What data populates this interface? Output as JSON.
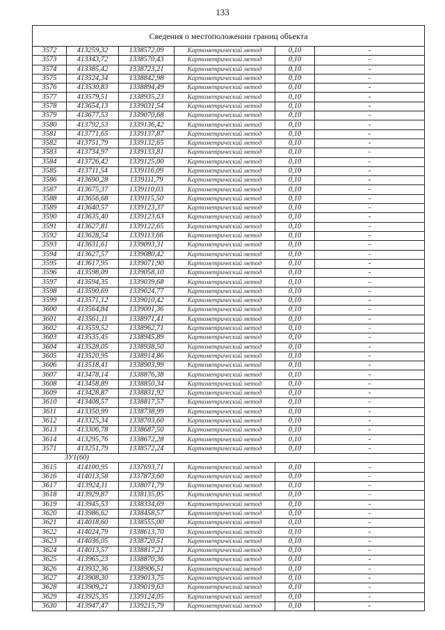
{
  "page_number": "133",
  "table": {
    "title": "Сведения о местоположении границ объекта",
    "sections": [
      {
        "label": "",
        "rows": [
          [
            "3572",
            "413259,32",
            "1338572,09",
            "Картометрический метод",
            "0,10",
            "-"
          ],
          [
            "3573",
            "413343,72",
            "1338570,43",
            "Картометрический метод",
            "0,10",
            "-"
          ],
          [
            "3574",
            "413385,42",
            "1338723,21",
            "Картометрический метод",
            "0,10",
            "-"
          ],
          [
            "3575",
            "413524,34",
            "1338842,98",
            "Картометрический метод",
            "0,10",
            "-"
          ],
          [
            "3576",
            "413530,83",
            "1338894,49",
            "Картометрический метод",
            "0,10",
            "-"
          ],
          [
            "3577",
            "413579,51",
            "1338935,23",
            "Картометрический метод",
            "0,10",
            "-"
          ],
          [
            "3578",
            "413654,13",
            "1339031,54",
            "Картометрический метод",
            "0,10",
            "-"
          ],
          [
            "3579",
            "413677,53",
            "1339070,68",
            "Картометрический метод",
            "0,10",
            "-"
          ],
          [
            "3580",
            "413792,53",
            "1339136,42",
            "Картометрический метод",
            "0,10",
            "-"
          ],
          [
            "3581",
            "413771,65",
            "1339137,87",
            "Картометрический метод",
            "0,10",
            "-"
          ],
          [
            "3582",
            "413751,79",
            "1339132,65",
            "Картометрический метод",
            "0,10",
            "-"
          ],
          [
            "3583",
            "413734,97",
            "1339133,81",
            "Картометрический метод",
            "0,10",
            "-"
          ],
          [
            "3584",
            "413726,42",
            "1339125,00",
            "Картометрический метод",
            "0,10",
            "-"
          ],
          [
            "3585",
            "413711,54",
            "1339116,09",
            "Картометрический метод",
            "0,10",
            "-"
          ],
          [
            "3586",
            "413690,28",
            "1339111,79",
            "Картометрический метод",
            "0,10",
            "-"
          ],
          [
            "3587",
            "413675,37",
            "1339110,03",
            "Картометрический метод",
            "0,10",
            "-"
          ],
          [
            "3588",
            "413656,68",
            "1339115,50",
            "Картометрический метод",
            "0,10",
            "-"
          ],
          [
            "3589",
            "413640,57",
            "1339123,37",
            "Картометрический метод",
            "0,10",
            "-"
          ],
          [
            "3590",
            "413635,40",
            "1339123,63",
            "Картометрический метод",
            "0,10",
            "-"
          ],
          [
            "3591",
            "413627,81",
            "1339122,65",
            "Картометрический метод",
            "0,10",
            "-"
          ],
          [
            "3592",
            "413628,54",
            "1339113,66",
            "Картометрический метод",
            "0,10",
            "-"
          ],
          [
            "3593",
            "413631,61",
            "1339093,31",
            "Картометрический метод",
            "0,10",
            "-"
          ],
          [
            "3594",
            "413627,57",
            "1339080,42",
            "Картометрический метод",
            "0,10",
            "-"
          ],
          [
            "3595",
            "413617,95",
            "1339071,90",
            "Картометрический метод",
            "0,10",
            "-"
          ],
          [
            "3596",
            "413598,09",
            "1339058,10",
            "Картометрический метод",
            "0,10",
            "-"
          ],
          [
            "3597",
            "413594,35",
            "1339039,68",
            "Картометрический метод",
            "0,10",
            "-"
          ],
          [
            "3598",
            "413590,69",
            "1339024,77",
            "Картометрический метод",
            "0,10",
            "-"
          ],
          [
            "3599",
            "413571,12",
            "1339010,42",
            "Картометрический метод",
            "0,10",
            "-"
          ],
          [
            "3600",
            "413564,84",
            "1339001,36",
            "Картометрический метод",
            "0,10",
            "-"
          ],
          [
            "3601",
            "413561,11",
            "1338971,41",
            "Картометрический метод",
            "0,10",
            "-"
          ],
          [
            "3602",
            "413559,52",
            "1338962,71",
            "Картометрический метод",
            "0,10",
            "-"
          ],
          [
            "3603",
            "413535,45",
            "1338945,89",
            "Картометрический метод",
            "0,10",
            "-"
          ],
          [
            "3604",
            "413528,05",
            "1338938,50",
            "Картометрический метод",
            "0,10",
            "-"
          ],
          [
            "3605",
            "413520,95",
            "1338914,86",
            "Картометрический метод",
            "0,10",
            "-"
          ],
          [
            "3606",
            "413518,41",
            "1338903,99",
            "Картометрический метод",
            "0,10",
            "-"
          ],
          [
            "3607",
            "413478,14",
            "1338876,38",
            "Картометрический метод",
            "0,10",
            "-"
          ],
          [
            "3608",
            "413458,89",
            "1338850,34",
            "Картометрический метод",
            "0,10",
            "-"
          ],
          [
            "3609",
            "413428,87",
            "1338831,92",
            "Картометрический метод",
            "0,10",
            "-"
          ],
          [
            "3610",
            "413408,57",
            "1338817,57",
            "Картометрический метод",
            "0,10",
            "-"
          ],
          [
            "3611",
            "413350,99",
            "1338738,99",
            "Картометрический метод",
            "0,10",
            "-"
          ],
          [
            "3612",
            "413325,34",
            "1338703,60",
            "Картометрический метод",
            "0,10",
            "-"
          ],
          [
            "3613",
            "413306,78",
            "1338687,50",
            "Картометрический метод",
            "0,10",
            "-"
          ],
          [
            "3614",
            "413295,76",
            "1338672,28",
            "Картометрический метод",
            "0,10",
            "-"
          ],
          [
            "3571",
            "413251,79",
            "1338572,24",
            "Картометрический метод",
            "0,10",
            "-"
          ]
        ]
      },
      {
        "label": "ЗУ1(60)",
        "rows": [
          [
            "3615",
            "414100,95",
            "1337693,71",
            "Картометрический метод",
            "0,10",
            "-"
          ],
          [
            "3616",
            "414013,58",
            "1337873,60",
            "Картометрический метод",
            "0,10",
            "-"
          ],
          [
            "3617",
            "413924,11",
            "1338071,79",
            "Картометрический метод",
            "0,10",
            "-"
          ],
          [
            "3618",
            "413929,87",
            "1338135,05",
            "Картометрический метод",
            "0,10",
            "-"
          ],
          [
            "3619",
            "413945,53",
            "1338334,69",
            "Картометрический метод",
            "0,10",
            "-"
          ],
          [
            "3620",
            "413986,62",
            "1338458,57",
            "Картометрический метод",
            "0,10",
            "-"
          ],
          [
            "3621",
            "414018,60",
            "1338555,00",
            "Картометрический метод",
            "0,10",
            "-"
          ],
          [
            "3622",
            "414024,79",
            "1338613,70",
            "Картометрический метод",
            "0,10",
            "-"
          ],
          [
            "3623",
            "414036,05",
            "1338720,51",
            "Картометрический метод",
            "0,10",
            "-"
          ],
          [
            "3624",
            "414013,57",
            "1338817,21",
            "Картометрический метод",
            "0,10",
            "-"
          ],
          [
            "3625",
            "413965,23",
            "1338870,36",
            "Картометрический метод",
            "0,10",
            "-"
          ],
          [
            "3626",
            "413932,36",
            "1338906,51",
            "Картометрический метод",
            "0,10",
            "-"
          ],
          [
            "3627",
            "413908,30",
            "1339013,75",
            "Картометрический метод",
            "0,10",
            "-"
          ],
          [
            "3628",
            "413909,21",
            "1339019,63",
            "Картометрический метод",
            "0,10",
            "-"
          ],
          [
            "3629",
            "413925,35",
            "1339124,05",
            "Картометрический метод",
            "0,10",
            "-"
          ],
          [
            "3630",
            "413947,47",
            "1339215,79",
            "Картометрический метод",
            "0,10",
            "-"
          ]
        ]
      }
    ]
  }
}
